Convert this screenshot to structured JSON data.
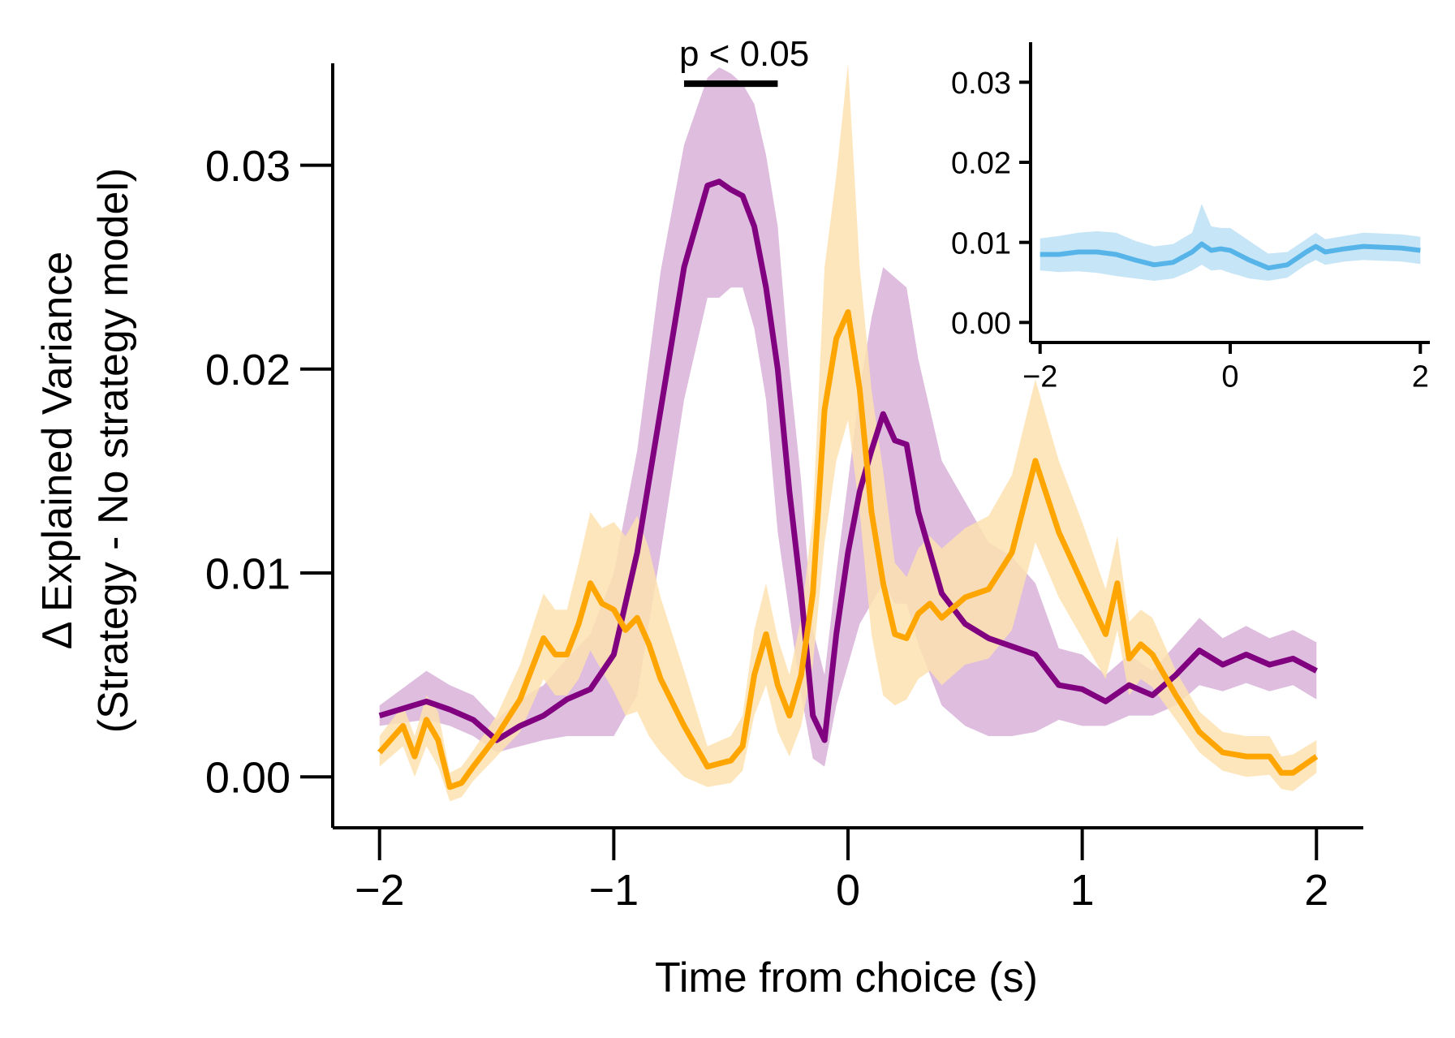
{
  "chart_data": [
    {
      "type": "line",
      "xlabel": "Time from choice (s)",
      "ylabel": "Δ Explained Variance",
      "ylabel_sub": "(Strategy - No strategy model)",
      "xlim": [
        -2.2,
        2.2
      ],
      "ylim": [
        -0.0025,
        0.035
      ],
      "x_ticks": [
        -2,
        -1,
        0,
        1,
        2
      ],
      "x_tick_labels": [
        "−2",
        "−1",
        "0",
        "1",
        "2"
      ],
      "y_ticks": [
        0.0,
        0.01,
        0.02,
        0.03
      ],
      "y_tick_labels": [
        "0.00",
        "0.01",
        "0.02",
        "0.03"
      ],
      "grid": false,
      "annotations": [
        {
          "text": "p < 0.05",
          "bar_x": [
            -0.7,
            -0.3
          ],
          "y": 0.034
        }
      ],
      "series": [
        {
          "color": "#800080",
          "band_color": "#d8b1d8",
          "x": [
            -2.0,
            -1.8,
            -1.7,
            -1.6,
            -1.5,
            -1.4,
            -1.3,
            -1.2,
            -1.1,
            -1.0,
            -0.9,
            -0.8,
            -0.7,
            -0.6,
            -0.55,
            -0.5,
            -0.45,
            -0.4,
            -0.35,
            -0.3,
            -0.25,
            -0.2,
            -0.15,
            -0.1,
            -0.05,
            0.0,
            0.05,
            0.1,
            0.15,
            0.2,
            0.25,
            0.3,
            0.4,
            0.5,
            0.6,
            0.7,
            0.8,
            0.9,
            1.0,
            1.1,
            1.2,
            1.3,
            1.4,
            1.5,
            1.6,
            1.7,
            1.8,
            1.9,
            2.0
          ],
          "y": [
            0.003,
            0.0037,
            0.0033,
            0.0028,
            0.0018,
            0.0025,
            0.003,
            0.0038,
            0.0043,
            0.006,
            0.011,
            0.018,
            0.025,
            0.029,
            0.0292,
            0.0288,
            0.0285,
            0.027,
            0.024,
            0.02,
            0.014,
            0.009,
            0.003,
            0.0018,
            0.007,
            0.011,
            0.014,
            0.016,
            0.0178,
            0.0165,
            0.0163,
            0.013,
            0.009,
            0.0075,
            0.0068,
            0.0064,
            0.006,
            0.0045,
            0.0043,
            0.0037,
            0.0045,
            0.004,
            0.005,
            0.0062,
            0.0055,
            0.006,
            0.0055,
            0.0058,
            0.0052
          ],
          "lower": [
            0.0025,
            0.0028,
            0.0025,
            0.002,
            0.0012,
            0.0015,
            0.0018,
            0.002,
            0.002,
            0.002,
            0.004,
            0.011,
            0.0185,
            0.0235,
            0.0235,
            0.024,
            0.024,
            0.022,
            0.0185,
            0.012,
            0.008,
            0.004,
            0.0009,
            0.0005,
            0.0035,
            0.0055,
            0.0075,
            0.0085,
            0.0095,
            0.0085,
            0.0085,
            0.0065,
            0.0035,
            0.0025,
            0.002,
            0.002,
            0.0022,
            0.0028,
            0.0025,
            0.0025,
            0.003,
            0.003,
            0.0035,
            0.0045,
            0.0042,
            0.0046,
            0.0042,
            0.0045,
            0.0038
          ],
          "upper": [
            0.0035,
            0.0052,
            0.0045,
            0.004,
            0.0028,
            0.0038,
            0.0045,
            0.0058,
            0.007,
            0.01,
            0.016,
            0.0248,
            0.031,
            0.0343,
            0.0348,
            0.0345,
            0.034,
            0.033,
            0.0305,
            0.027,
            0.02,
            0.0145,
            0.0072,
            0.005,
            0.01,
            0.0145,
            0.019,
            0.0225,
            0.025,
            0.0245,
            0.024,
            0.0205,
            0.0155,
            0.0135,
            0.0115,
            0.0108,
            0.0095,
            0.0063,
            0.006,
            0.005,
            0.006,
            0.0052,
            0.0065,
            0.0078,
            0.0068,
            0.0074,
            0.0068,
            0.0072,
            0.0066
          ]
        },
        {
          "color": "#ffa500",
          "band_color": "#fde2b0",
          "x": [
            -2.0,
            -1.9,
            -1.85,
            -1.8,
            -1.75,
            -1.7,
            -1.65,
            -1.6,
            -1.5,
            -1.4,
            -1.3,
            -1.25,
            -1.2,
            -1.15,
            -1.1,
            -1.05,
            -1.0,
            -0.95,
            -0.9,
            -0.85,
            -0.8,
            -0.7,
            -0.6,
            -0.5,
            -0.45,
            -0.4,
            -0.35,
            -0.3,
            -0.25,
            -0.2,
            -0.15,
            -0.1,
            -0.05,
            0.0,
            0.05,
            0.1,
            0.15,
            0.2,
            0.25,
            0.3,
            0.35,
            0.4,
            0.5,
            0.6,
            0.7,
            0.8,
            0.9,
            1.0,
            1.1,
            1.15,
            1.2,
            1.25,
            1.3,
            1.4,
            1.5,
            1.6,
            1.7,
            1.8,
            1.85,
            1.9,
            2.0
          ],
          "y": [
            0.0012,
            0.0025,
            0.001,
            0.0028,
            0.0018,
            -0.0005,
            -0.0003,
            0.0005,
            0.002,
            0.0038,
            0.0068,
            0.006,
            0.006,
            0.0075,
            0.0095,
            0.0085,
            0.0082,
            0.0072,
            0.0078,
            0.0065,
            0.0048,
            0.0025,
            0.0005,
            0.0008,
            0.0015,
            0.005,
            0.007,
            0.0045,
            0.003,
            0.005,
            0.009,
            0.018,
            0.0215,
            0.0228,
            0.019,
            0.013,
            0.0095,
            0.007,
            0.0068,
            0.008,
            0.0085,
            0.0078,
            0.0088,
            0.0092,
            0.011,
            0.0155,
            0.012,
            0.0095,
            0.007,
            0.0095,
            0.0058,
            0.0065,
            0.006,
            0.004,
            0.0022,
            0.0012,
            0.001,
            0.001,
            0.0002,
            0.0002,
            0.001
          ],
          "lower": [
            0.0005,
            0.0015,
            0.0,
            0.0015,
            0.0005,
            -0.0012,
            -0.001,
            -0.0002,
            0.001,
            0.0022,
            0.0048,
            0.004,
            0.004,
            0.0048,
            0.0062,
            0.0052,
            0.0042,
            0.003,
            0.0032,
            0.002,
            0.0012,
            0.0,
            -0.0005,
            -0.0003,
            0.0003,
            0.003,
            0.0045,
            0.0022,
            0.001,
            0.0025,
            0.0055,
            0.0115,
            0.0155,
            0.0175,
            0.013,
            0.007,
            0.004,
            0.0035,
            0.0038,
            0.0048,
            0.0052,
            0.0045,
            0.0055,
            0.0058,
            0.0072,
            0.0115,
            0.0088,
            0.0068,
            0.0048,
            0.0072,
            0.004,
            0.0048,
            0.0044,
            0.0028,
            0.0012,
            0.0003,
            0.0,
            0.0001,
            -0.0006,
            -0.0007,
            0.0002
          ],
          "upper": [
            0.002,
            0.0035,
            0.002,
            0.004,
            0.0032,
            0.0002,
            0.0005,
            0.0013,
            0.003,
            0.0055,
            0.009,
            0.0082,
            0.0082,
            0.0105,
            0.013,
            0.0122,
            0.0125,
            0.0118,
            0.0128,
            0.0112,
            0.0088,
            0.0052,
            0.0015,
            0.002,
            0.003,
            0.0072,
            0.0095,
            0.0068,
            0.005,
            0.0078,
            0.0128,
            0.025,
            0.0295,
            0.035,
            0.025,
            0.019,
            0.015,
            0.0105,
            0.0098,
            0.0112,
            0.0118,
            0.0112,
            0.0122,
            0.0128,
            0.0148,
            0.0195,
            0.0155,
            0.0125,
            0.0092,
            0.0118,
            0.0076,
            0.0082,
            0.0078,
            0.0052,
            0.0032,
            0.0022,
            0.002,
            0.002,
            0.001,
            0.0011,
            0.0018
          ]
        }
      ]
    },
    {
      "type": "line",
      "role": "inset",
      "xlim": [
        -2.1,
        2.1
      ],
      "ylim": [
        -0.0025,
        0.035
      ],
      "x_ticks": [
        -2,
        0,
        2
      ],
      "x_tick_labels": [
        "−2",
        "0",
        "2"
      ],
      "y_ticks": [
        0.0,
        0.01,
        0.02,
        0.03
      ],
      "y_tick_labels": [
        "0.00",
        "0.01",
        "0.02",
        "0.03"
      ],
      "grid": false,
      "series": [
        {
          "color": "#56b4e9",
          "band_color": "#c6e5f7",
          "x": [
            -2.0,
            -1.8,
            -1.6,
            -1.4,
            -1.2,
            -1.0,
            -0.8,
            -0.6,
            -0.4,
            -0.3,
            -0.2,
            -0.1,
            0.0,
            0.2,
            0.4,
            0.6,
            0.8,
            0.9,
            1.0,
            1.2,
            1.4,
            1.6,
            1.8,
            2.0
          ],
          "y": [
            0.0085,
            0.0085,
            0.0088,
            0.0088,
            0.0085,
            0.0078,
            0.0072,
            0.0075,
            0.0088,
            0.0098,
            0.009,
            0.0092,
            0.009,
            0.0078,
            0.0068,
            0.0072,
            0.0088,
            0.0095,
            0.0088,
            0.0092,
            0.0095,
            0.0094,
            0.0093,
            0.009
          ],
          "lower": [
            0.0065,
            0.0063,
            0.0064,
            0.0062,
            0.0058,
            0.0055,
            0.0052,
            0.0055,
            0.0065,
            0.0072,
            0.0065,
            0.0066,
            0.0062,
            0.0055,
            0.0052,
            0.0056,
            0.0072,
            0.0078,
            0.0072,
            0.0076,
            0.0078,
            0.0077,
            0.0076,
            0.0073
          ],
          "upper": [
            0.0105,
            0.0108,
            0.0112,
            0.0114,
            0.0112,
            0.0102,
            0.0095,
            0.0098,
            0.0112,
            0.0148,
            0.012,
            0.0118,
            0.0118,
            0.0102,
            0.0086,
            0.0088,
            0.0104,
            0.0112,
            0.0104,
            0.0108,
            0.0112,
            0.0111,
            0.011,
            0.0107
          ]
        }
      ]
    }
  ]
}
